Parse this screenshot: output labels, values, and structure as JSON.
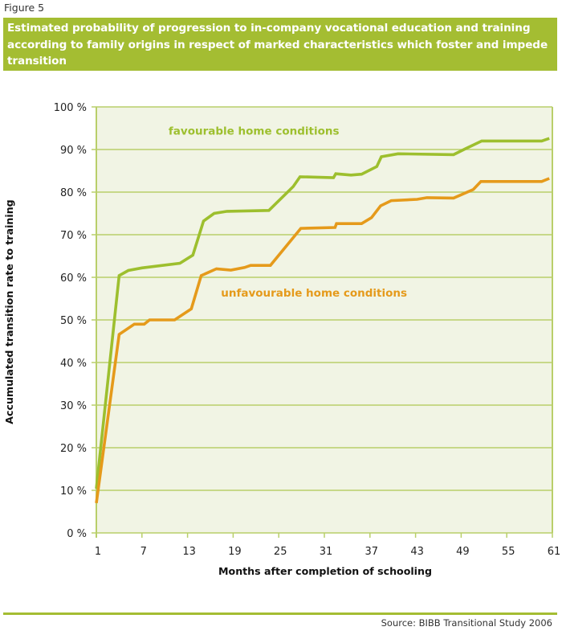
{
  "figure_label": "Figure 5",
  "title": "Estimated probability of progression to in-company vocational education and training according to family origins in respect of marked characteristics which foster and impede transition",
  "source": "Source: BIBB Transitional Study 2006",
  "colors": {
    "accent": "#a4bd32",
    "plot_background": "#f1f4e4",
    "grid": "#b9cf6a",
    "favourable": "#9dbf2e",
    "unfavourable": "#e59a1b"
  },
  "chart_data": {
    "type": "line",
    "title": "Estimated probability of progression to in-company vocational education and training according to family origins in respect of marked characteristics which foster and impede transition",
    "xlabel": "Months after completion of schooling",
    "ylabel": "Accumulated transition rate to training",
    "xlim": [
      1,
      61
    ],
    "ylim": [
      0,
      100
    ],
    "x_ticks": [
      1,
      7,
      13,
      19,
      25,
      31,
      37,
      43,
      49,
      55,
      61
    ],
    "x_tick_labels": [
      "1",
      "7",
      "13",
      "19",
      "25",
      "31",
      "37",
      "43",
      "49",
      "55",
      "61"
    ],
    "y_ticks": [
      0,
      10,
      20,
      30,
      40,
      50,
      60,
      70,
      80,
      90,
      100
    ],
    "y_tick_labels": [
      "0 %",
      "10 %",
      "20 %",
      "30 %",
      "40 %",
      "50 %",
      "60 %",
      "70 %",
      "80 %",
      "90 %",
      "100 %"
    ],
    "grid": true,
    "legend": "inline labels",
    "series": [
      {
        "name": "favourable home conditions",
        "label_position": {
          "x": 10.5,
          "y": 93.5
        },
        "points": [
          [
            1,
            10.4
          ],
          [
            4,
            60.4
          ],
          [
            5.2,
            61.6
          ],
          [
            7,
            62.2
          ],
          [
            12,
            63.3
          ],
          [
            13.7,
            65.2
          ],
          [
            15.1,
            73.2
          ],
          [
            16.5,
            75.0
          ],
          [
            18.2,
            75.5
          ],
          [
            23.7,
            75.7
          ],
          [
            26.9,
            81.3
          ],
          [
            27.8,
            83.6
          ],
          [
            32.2,
            83.4
          ],
          [
            32.5,
            84.3
          ],
          [
            34.5,
            84.0
          ],
          [
            35.9,
            84.2
          ],
          [
            37.9,
            86.0
          ],
          [
            38.5,
            88.3
          ],
          [
            40.7,
            89.0
          ],
          [
            48,
            88.8
          ],
          [
            49.6,
            90.2
          ],
          [
            51.7,
            92.0
          ],
          [
            59.6,
            92.0
          ],
          [
            60.6,
            92.6
          ]
        ]
      },
      {
        "name": "unfavourable home conditions",
        "label_position": {
          "x": 17.4,
          "y": 55.5
        },
        "points": [
          [
            1,
            7.0
          ],
          [
            4,
            46.6
          ],
          [
            6,
            49.0
          ],
          [
            7.3,
            49.0
          ],
          [
            8,
            50.0
          ],
          [
            11.3,
            50.0
          ],
          [
            13.5,
            52.6
          ],
          [
            14.8,
            60.4
          ],
          [
            16.8,
            62.0
          ],
          [
            18.7,
            61.7
          ],
          [
            20.5,
            62.3
          ],
          [
            21.3,
            62.8
          ],
          [
            23.9,
            62.8
          ],
          [
            27.9,
            71.5
          ],
          [
            32.4,
            71.7
          ],
          [
            32.6,
            72.6
          ],
          [
            35.9,
            72.6
          ],
          [
            37.2,
            74.0
          ],
          [
            38.4,
            76.8
          ],
          [
            39.8,
            78.0
          ],
          [
            43.2,
            78.3
          ],
          [
            44.5,
            78.7
          ],
          [
            48,
            78.6
          ],
          [
            50.6,
            80.6
          ],
          [
            51.6,
            82.5
          ],
          [
            59.6,
            82.5
          ],
          [
            60.6,
            83.2
          ]
        ]
      }
    ]
  }
}
